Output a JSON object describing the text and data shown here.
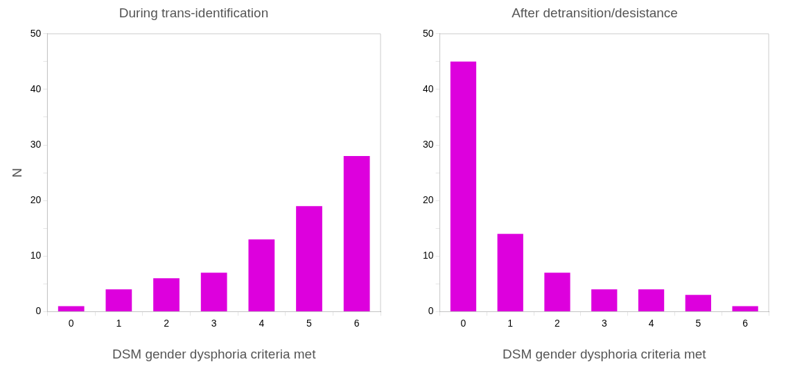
{
  "chart_data": [
    {
      "type": "bar",
      "title": "During trans-identification",
      "xlabel": "DSM gender dysphoria criteria met",
      "ylabel": "N",
      "categories": [
        "0",
        "1",
        "2",
        "3",
        "4",
        "5",
        "6"
      ],
      "values": [
        1,
        4,
        6,
        7,
        13,
        19,
        28
      ],
      "color": "#dd00dd",
      "ylim": [
        0,
        50
      ],
      "yticks": [
        0,
        {
          "value": 5,
          "label": null
        },
        10,
        {
          "value": 15,
          "label": null
        },
        20,
        {
          "value": 25,
          "label": null
        },
        30,
        {
          "value": 35,
          "label": null
        },
        40,
        {
          "value": 45,
          "label": null
        },
        50
      ],
      "grid": false,
      "legend": false
    },
    {
      "type": "bar",
      "title": "After detransition/desistance",
      "xlabel": "DSM gender dysphoria criteria met",
      "categories": [
        "0",
        "1",
        "2",
        "3",
        "4",
        "5",
        "6"
      ],
      "values": [
        45,
        14,
        7,
        4,
        4,
        3,
        1
      ],
      "color": "#dd00dd",
      "ylim": [
        0,
        50
      ],
      "yticks": [
        0,
        {
          "value": 5,
          "label": null
        },
        10,
        {
          "value": 15,
          "label": null
        },
        20,
        {
          "value": 25,
          "label": null
        },
        30,
        {
          "value": 35,
          "label": null
        },
        40,
        {
          "value": 45,
          "label": null
        },
        50
      ],
      "grid": false,
      "legend": false
    }
  ]
}
